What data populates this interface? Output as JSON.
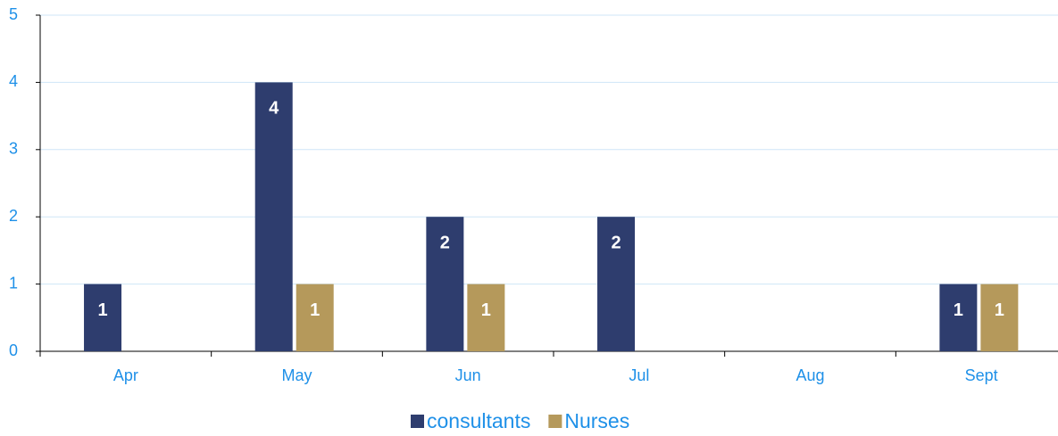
{
  "chart_data": {
    "type": "bar",
    "categories": [
      "Apr",
      "May",
      "Jun",
      "Jul",
      "Aug",
      "Sept"
    ],
    "series": [
      {
        "name": "consultants",
        "color": "#2e3d6e",
        "values": [
          1,
          4,
          2,
          2,
          null,
          1
        ]
      },
      {
        "name": "Nurses",
        "color": "#b5995b",
        "values": [
          null,
          1,
          1,
          null,
          null,
          1
        ]
      }
    ],
    "ylim": [
      0,
      5
    ],
    "yticks": [
      0,
      1,
      2,
      3,
      4,
      5
    ],
    "grid": true,
    "legend": "bottom"
  }
}
